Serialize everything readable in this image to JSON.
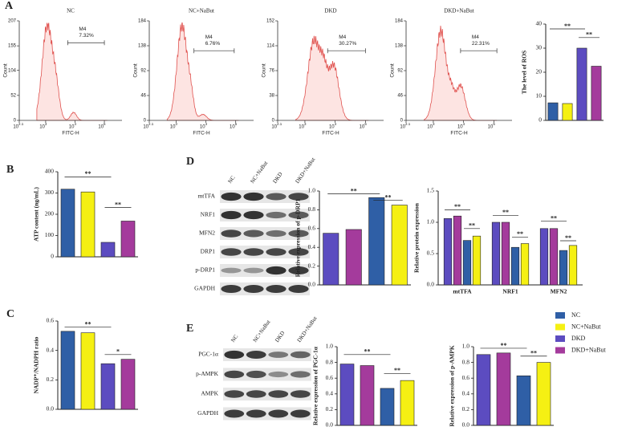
{
  "panel_labels": [
    "A",
    "B",
    "C",
    "D",
    "E"
  ],
  "flow_panels": [
    {
      "title": "NC",
      "gate_label": "M4",
      "gate_percent": "7.32%",
      "xlabel": "FITC-H",
      "ylabel": "Count",
      "xtick_base": "10",
      "xticks": [
        2.1,
        3,
        4,
        5
      ],
      "xlim": [
        2.1,
        5.6
      ],
      "ylim": [
        0,
        207
      ],
      "yticks": [
        0,
        52,
        104,
        155,
        207
      ]
    },
    {
      "title": "NC+NaBut",
      "gate_label": "M4",
      "gate_percent": "6.76%",
      "xlabel": "FITC-H",
      "ylabel": "Count",
      "xtick_base": "10",
      "xticks": [
        2.1,
        3,
        4,
        5
      ],
      "xlim": [
        2.1,
        5.6
      ],
      "ylim": [
        0,
        184
      ],
      "yticks": [
        0,
        46,
        92,
        138,
        184
      ]
    },
    {
      "title": "DKD",
      "gate_label": "M4",
      "gate_percent": "30.27%",
      "xlabel": "FITC-H",
      "ylabel": "Count",
      "xtick_base": "10",
      "xticks": [
        2.1,
        3,
        4,
        5
      ],
      "xlim": [
        2.1,
        5.6
      ],
      "ylim": [
        0,
        152
      ],
      "yticks": [
        0,
        38,
        76,
        114,
        152
      ]
    },
    {
      "title": "DKD+NaBut",
      "gate_label": "M4",
      "gate_percent": "22.31%",
      "xlabel": "FITC-H",
      "ylabel": "Count",
      "xtick_base": "10",
      "xticks": [
        2.1,
        3,
        4,
        5
      ],
      "xlim": [
        2.1,
        5.6
      ],
      "ylim": [
        0,
        184
      ],
      "yticks": [
        0,
        46,
        92,
        138,
        184
      ]
    }
  ],
  "blots": [
    {
      "columns": [
        "NC",
        "NC+NaBut",
        "DKD",
        "DKD+NaBut"
      ],
      "rows": [
        "mtTFA",
        "NRF1",
        "MFN2",
        "DRP1",
        "p-DRP1",
        "GAPDH"
      ]
    },
    {
      "columns": [
        "NC",
        "NC+NaBut",
        "DKD",
        "DKD+NaBut"
      ],
      "rows": [
        "PGC-1α",
        "p-AMPK",
        "AMPK",
        "GAPDH"
      ]
    }
  ],
  "legend": [
    {
      "name": "NC",
      "color": "#2f5fa6"
    },
    {
      "name": "NC+NaBut",
      "color": "#f5f013"
    },
    {
      "name": "DKD",
      "color": "#5c4cc0"
    },
    {
      "name": "DKD+NaBut",
      "color": "#a43b9c"
    }
  ],
  "chart_data": [
    {
      "type": "bar",
      "ylabel": "The level of ROS",
      "values": [
        7.3,
        7,
        30,
        22.5
      ],
      "colors": [
        "#2f5fa6",
        "#f5f013",
        "#5c4cc0",
        "#a43b9c"
      ],
      "ylim": [
        0,
        40
      ],
      "yticks": [
        0,
        10,
        20,
        30,
        40
      ],
      "annotations": [
        "**",
        "**"
      ]
    },
    {
      "type": "bar",
      "ylabel": "ATP content (ng/mL)",
      "values": [
        318,
        305,
        68,
        168
      ],
      "colors": [
        "#2f5fa6",
        "#f5f013",
        "#5c4cc0",
        "#a43b9c"
      ],
      "ylim": [
        0,
        400
      ],
      "yticks": [
        0,
        100,
        200,
        300,
        400
      ],
      "annotations": [
        "**",
        "**"
      ]
    },
    {
      "type": "bar",
      "ylabel": "NADP⁺/NADPH ratio",
      "values": [
        0.53,
        0.52,
        0.31,
        0.34
      ],
      "colors": [
        "#2f5fa6",
        "#f5f013",
        "#5c4cc0",
        "#a43b9c"
      ],
      "ylim": [
        0,
        0.6
      ],
      "yticks": [
        {
          "value": 0,
          "label": "0.0"
        },
        0.2,
        0.4,
        0.6
      ],
      "annotations": [
        "**",
        "*"
      ]
    },
    {
      "type": "bar",
      "ylabel": "Relative expression of p-DRP1",
      "values": [
        0.55,
        0.59,
        0.93,
        0.85
      ],
      "colors": [
        "#5c4cc0",
        "#a43b9c",
        "#2f5fa6",
        "#f5f013"
      ],
      "ylim": [
        0,
        1.0
      ],
      "yticks": [
        {
          "value": 0,
          "label": "0.0"
        },
        0.2,
        0.4,
        0.6,
        0.8,
        {
          "value": 1,
          "label": "1.0"
        }
      ],
      "annotations": [
        "**",
        "**"
      ]
    },
    {
      "type": "grouped_bar",
      "ylabel": "Relative protein expression",
      "categories": [
        "mtTFA",
        "NRF1",
        "MFN2"
      ],
      "series": [
        {
          "color": "#5c4cc0",
          "values": [
            1.06,
            1.0,
            0.9
          ]
        },
        {
          "color": "#a43b9c",
          "values": [
            1.1,
            1.0,
            0.9
          ]
        },
        {
          "color": "#2f5fa6",
          "values": [
            0.71,
            0.6,
            0.55
          ]
        },
        {
          "color": "#f5f013",
          "values": [
            0.78,
            0.66,
            0.63
          ]
        }
      ],
      "ylim": [
        0,
        1.5
      ],
      "yticks": [
        {
          "value": 0,
          "label": "0.0"
        },
        0.5,
        {
          "value": 1,
          "label": "1.0"
        },
        1.5
      ],
      "annotations": [
        "**",
        "**",
        "**",
        "**",
        "**",
        "**"
      ]
    },
    {
      "type": "bar",
      "ylabel": "Relative expression of PGC-1α",
      "values": [
        0.78,
        0.76,
        0.47,
        0.57
      ],
      "colors": [
        "#5c4cc0",
        "#a43b9c",
        "#2f5fa6",
        "#f5f013"
      ],
      "ylim": [
        0,
        1.0
      ],
      "yticks": [
        {
          "value": 0,
          "label": "0.0"
        },
        0.2,
        0.4,
        0.6,
        0.8,
        {
          "value": 1,
          "label": "1.0"
        }
      ],
      "annotations": [
        "**",
        "**"
      ]
    },
    {
      "type": "bar",
      "ylabel": "Relative expression of p-AMPK",
      "values": [
        0.9,
        0.92,
        0.63,
        0.8
      ],
      "colors": [
        "#5c4cc0",
        "#a43b9c",
        "#2f5fa6",
        "#f5f013"
      ],
      "ylim": [
        0,
        1.0
      ],
      "yticks": [
        {
          "value": 0,
          "label": "0.0"
        },
        0.2,
        0.4,
        0.6,
        0.8,
        {
          "value": 1,
          "label": "1.0"
        }
      ],
      "annotations": [
        "**",
        "**"
      ]
    }
  ]
}
